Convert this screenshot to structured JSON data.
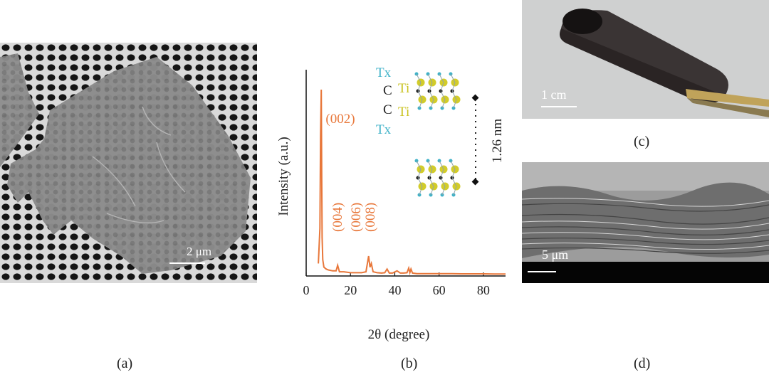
{
  "panels": {
    "a": {
      "label": "(a)",
      "scale": "2 μm"
    },
    "b": {
      "label": "(b)"
    },
    "c": {
      "label": "(c)",
      "scale": "1 cm"
    },
    "d": {
      "label": "(d)",
      "scale": "5 μm"
    }
  },
  "chart_data": {
    "type": "line",
    "xlabel": "2θ (degree)",
    "ylabel": "Intensity (a.u.)",
    "xlim": [
      0,
      90
    ],
    "xticks": [
      0,
      20,
      40,
      60,
      80
    ],
    "series_color": "#e8773a",
    "x": [
      5.5,
      6.2,
      6.5,
      6.8,
      7.0,
      7.2,
      7.5,
      8.0,
      9,
      10,
      12,
      13.5,
      14.2,
      15,
      17,
      20,
      22,
      25,
      27,
      28.2,
      28.8,
      29.4,
      30.2,
      32,
      34,
      35.5,
      36.5,
      37.5,
      39,
      41,
      42.5,
      44,
      45.5,
      46.3,
      46.8,
      47.3,
      48,
      50,
      55,
      60,
      65,
      70,
      75,
      80,
      85,
      90
    ],
    "y": [
      0.06,
      0.25,
      0.75,
      1.0,
      0.55,
      0.2,
      0.08,
      0.04,
      0.03,
      0.025,
      0.02,
      0.02,
      0.05,
      0.015,
      0.015,
      0.01,
      0.01,
      0.01,
      0.015,
      0.1,
      0.04,
      0.06,
      0.015,
      0.01,
      0.008,
      0.01,
      0.03,
      0.008,
      0.008,
      0.02,
      0.008,
      0.008,
      0.01,
      0.035,
      0.01,
      0.03,
      0.008,
      0.005,
      0.005,
      0.005,
      0.005,
      0.004,
      0.004,
      0.004,
      0.003,
      0.003
    ],
    "peak_annotations": [
      "(002)",
      "(004)",
      "(006)",
      "(008)"
    ],
    "structure": {
      "top_label": "Tx",
      "c1": "C",
      "ti1": "Ti",
      "c2": "C",
      "ti2": "Ti",
      "bottom_label": "Tx",
      "spacing": "1.26 nm"
    }
  }
}
